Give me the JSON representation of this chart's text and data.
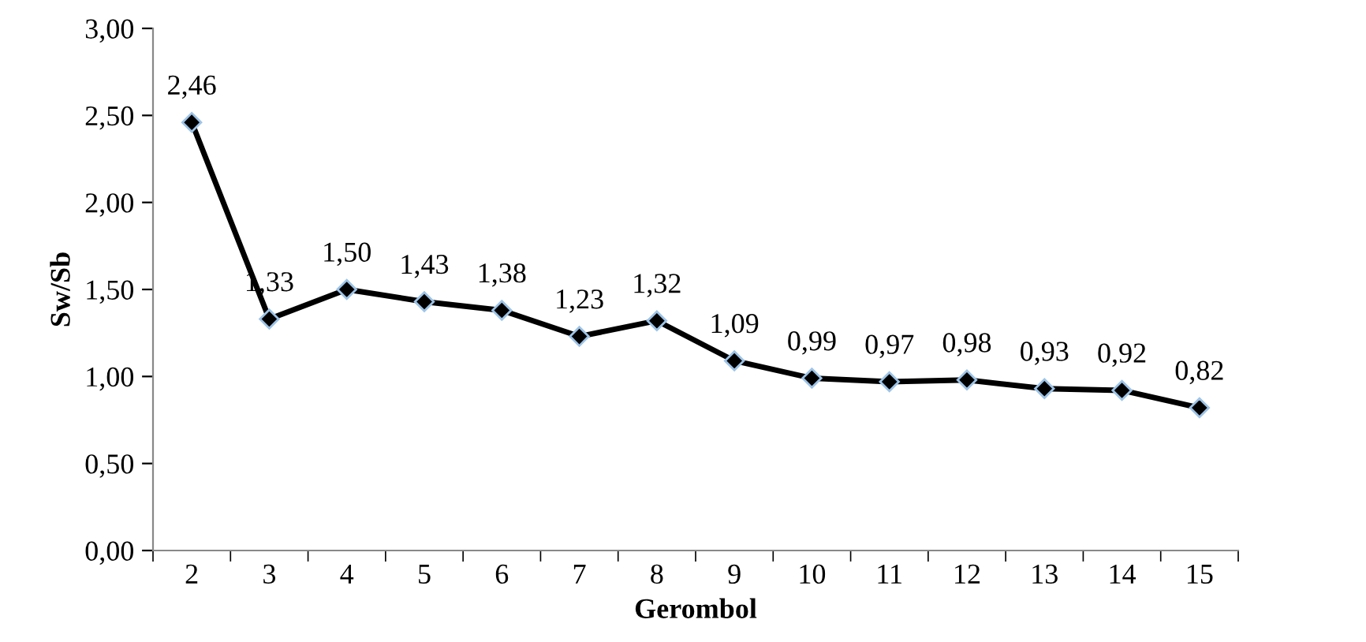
{
  "chart_data": {
    "type": "line",
    "xlabel": "Gerombol",
    "ylabel": "Sw/Sb",
    "categories": [
      "2",
      "3",
      "4",
      "5",
      "6",
      "7",
      "8",
      "9",
      "10",
      "11",
      "12",
      "13",
      "14",
      "15"
    ],
    "series": [
      {
        "color": "#000000",
        "values": [
          2.46,
          1.33,
          1.5,
          1.43,
          1.38,
          1.23,
          1.32,
          1.09,
          0.99,
          0.97,
          0.98,
          0.93,
          0.92,
          0.82
        ],
        "value_labels": [
          "2,46",
          "1,33",
          "1,50",
          "1,43",
          "1,38",
          "1,23",
          "1,32",
          "1,09",
          "0,99",
          "0,97",
          "0,98",
          "0,93",
          "0,92",
          "0,82"
        ]
      }
    ],
    "ylim": [
      0,
      3
    ],
    "yticks": [
      {
        "value": 0,
        "label": "0,00"
      },
      {
        "value": 0.5,
        "label": "0,50"
      },
      {
        "value": 1,
        "label": "1,00"
      },
      {
        "value": 1.5,
        "label": "1,50"
      },
      {
        "value": 2,
        "label": "2,00"
      },
      {
        "value": 2.5,
        "label": "2,50"
      },
      {
        "value": 3,
        "label": "3,00"
      }
    ],
    "marker": "diamond",
    "line_style": "solid",
    "grid": false,
    "legend": false
  }
}
